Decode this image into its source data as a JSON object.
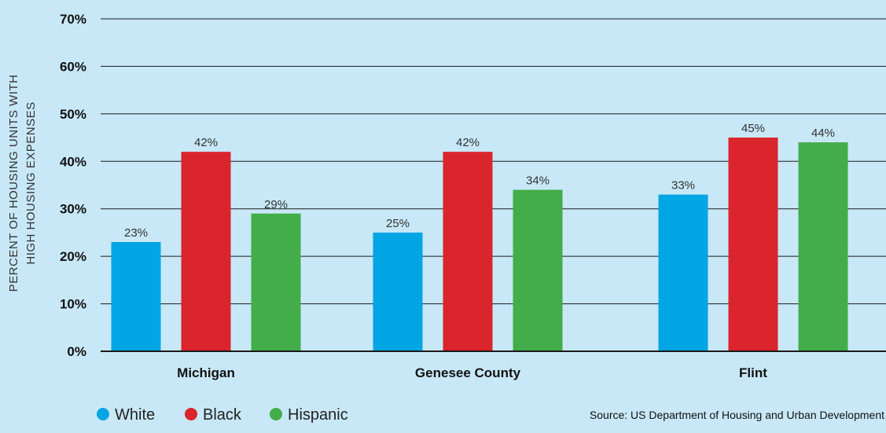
{
  "chart_data": {
    "type": "bar",
    "categories": [
      "Michigan",
      "Genesee County",
      "Flint"
    ],
    "series": [
      {
        "name": "White",
        "color": "#00a5e3",
        "values": [
          23,
          25,
          33
        ]
      },
      {
        "name": "Black",
        "color": "#d9252b",
        "values": [
          42,
          42,
          45
        ]
      },
      {
        "name": "Hispanic",
        "color": "#43ad49",
        "values": [
          29,
          34,
          44
        ]
      }
    ],
    "data_labels": [
      [
        "23%",
        "25%",
        "33%"
      ],
      [
        "42%",
        "42%",
        "45%"
      ],
      [
        "29%",
        "34%",
        "44%"
      ]
    ],
    "ylabel_lines": [
      "PERCENT OF HOUSING UNITS WITH",
      "HIGH HOUSING EXPENSES"
    ],
    "ylim": [
      0,
      70
    ],
    "yticks": [
      0,
      10,
      20,
      30,
      40,
      50,
      60,
      70
    ],
    "ytick_labels": [
      "0%",
      "10%",
      "20%",
      "30%",
      "40%",
      "50%",
      "60%",
      "70%"
    ],
    "grid": true,
    "legend_position": "bottom-left",
    "source": "Source: US Department of Housing and Urban Development"
  }
}
